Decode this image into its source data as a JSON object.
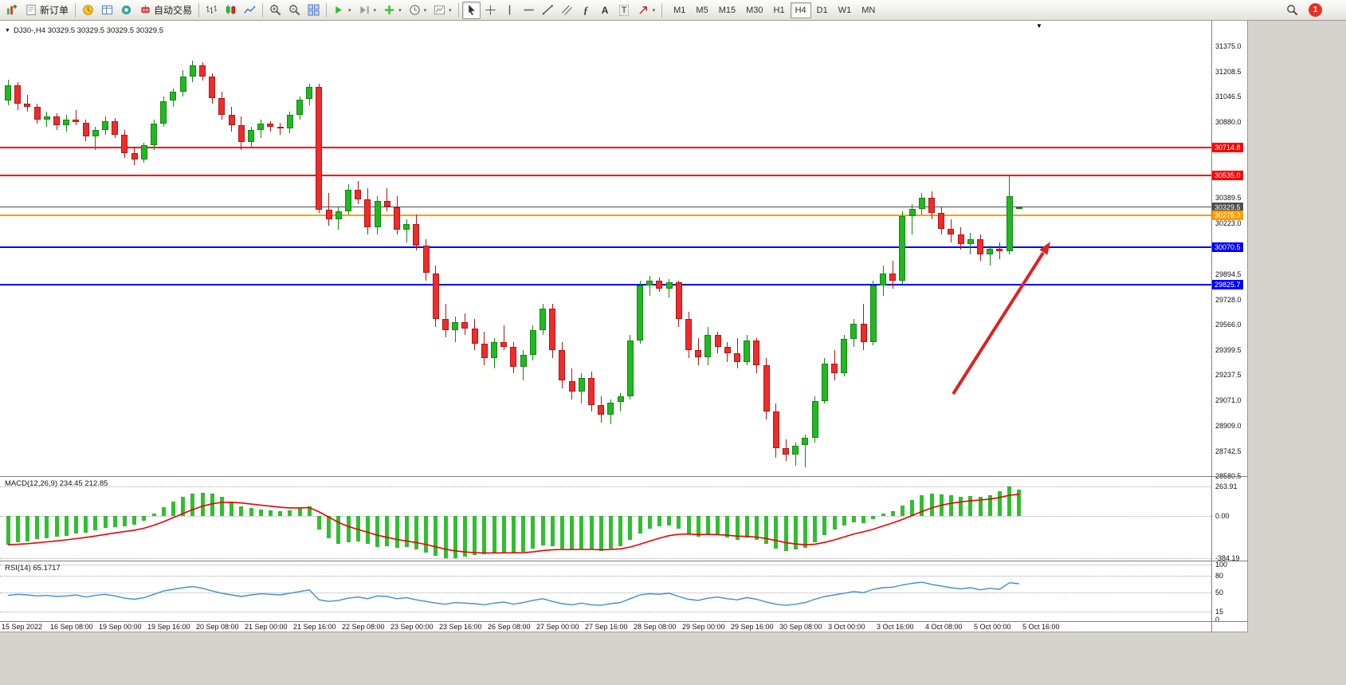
{
  "icons": {
    "dropdown": "▾",
    "menu_arrow": "▼",
    "shift_marker": "▼"
  },
  "toolbar": {
    "new_order": "新订单",
    "auto_trading": "自动交易",
    "glyphs": {
      "fibonacci": "ƒ",
      "text": "A",
      "label": "T"
    },
    "timeframes": [
      "M1",
      "M5",
      "M15",
      "M30",
      "H1",
      "H4",
      "D1",
      "W1",
      "MN"
    ],
    "active_timeframe": "H4",
    "notification_badge": "1"
  },
  "chart_title": "DJ30-,H4 30329.5 30329.5 30329.5 30329.5",
  "colors": {
    "up": "#22b822",
    "up_border": "#108810",
    "down": "#ee2c2c",
    "down_border": "#b81414",
    "macd_bar": "#2fbf2f",
    "macd_signal": "#f00000",
    "rsi_line": "#3e8ed0",
    "level_red": "#ff0000",
    "level_orange": "#ff9c00",
    "level_blue": "#0000ff",
    "bid_gray": "#4d4d4d",
    "arrow": "#dd2222"
  },
  "chart_data": [
    {
      "type": "candlestick",
      "symbol": "DJ30-",
      "timeframe": "H4",
      "ylim": [
        28580.5,
        31375.0
      ],
      "y_ticks": [
        "31375.0",
        "31208.5",
        "31046.5",
        "30880.0",
        "30389.5",
        "30223.0",
        "29894.5",
        "29728.0",
        "29566.0",
        "29399.5",
        "29237.5",
        "29071.0",
        "28909.0",
        "28742.5",
        "28580.5"
      ],
      "levels": [
        {
          "price": 30714.8,
          "label": "30714.8",
          "color": "#ff0000",
          "width": 2
        },
        {
          "price": 30535.0,
          "label": "30535.0",
          "color": "#ff0000",
          "width": 2
        },
        {
          "price": 30329.5,
          "label": "30329.5",
          "color": "#4d4d4d",
          "width": 1
        },
        {
          "price": 30275.3,
          "label": "30275.3",
          "color": "#ff9c00",
          "width": 2
        },
        {
          "price": 30070.5,
          "label": "30070.5",
          "color": "#0000ff",
          "width": 2
        },
        {
          "price": 29825.7,
          "label": "29825.7",
          "color": "#0000ff",
          "width": 2
        }
      ],
      "candles": [
        [
          31020,
          31160,
          30990,
          31120
        ],
        [
          31120,
          31140,
          30960,
          31000
        ],
        [
          31000,
          31060,
          30950,
          30980
        ],
        [
          30980,
          31000,
          30870,
          30900
        ],
        [
          30900,
          30950,
          30850,
          30920
        ],
        [
          30920,
          30940,
          30830,
          30860
        ],
        [
          30860,
          30930,
          30820,
          30900
        ],
        [
          30900,
          30960,
          30860,
          30880
        ],
        [
          30880,
          30900,
          30760,
          30790
        ],
        [
          30790,
          30850,
          30700,
          30830
        ],
        [
          30830,
          30920,
          30800,
          30890
        ],
        [
          30890,
          30910,
          30780,
          30800
        ],
        [
          30800,
          30830,
          30650,
          30680
        ],
        [
          30680,
          30720,
          30600,
          30640
        ],
        [
          30640,
          30750,
          30620,
          30730
        ],
        [
          30730,
          30900,
          30700,
          30870
        ],
        [
          30870,
          31050,
          30850,
          31020
        ],
        [
          31020,
          31100,
          30980,
          31080
        ],
        [
          31080,
          31220,
          31050,
          31180
        ],
        [
          31180,
          31280,
          31140,
          31250
        ],
        [
          31250,
          31270,
          31150,
          31180
        ],
        [
          31180,
          31200,
          31000,
          31040
        ],
        [
          31040,
          31080,
          30900,
          30930
        ],
        [
          30930,
          30980,
          30820,
          30860
        ],
        [
          30860,
          30920,
          30700,
          30750
        ],
        [
          30750,
          30850,
          30720,
          30830
        ],
        [
          30830,
          30900,
          30780,
          30870
        ],
        [
          30870,
          30890,
          30820,
          30850
        ],
        [
          30850,
          30880,
          30800,
          30840
        ],
        [
          30840,
          30950,
          30810,
          30930
        ],
        [
          30930,
          31050,
          30900,
          31030
        ],
        [
          31030,
          31130,
          30990,
          31110
        ],
        [
          31110,
          31130,
          30290,
          30310
        ],
        [
          30310,
          30420,
          30210,
          30250
        ],
        [
          30250,
          30330,
          30180,
          30300
        ],
        [
          30300,
          30480,
          30280,
          30440
        ],
        [
          30440,
          30500,
          30350,
          30380
        ],
        [
          30380,
          30450,
          30150,
          30200
        ],
        [
          30200,
          30400,
          30150,
          30370
        ],
        [
          30370,
          30450,
          30300,
          30330
        ],
        [
          30330,
          30400,
          30150,
          30180
        ],
        [
          30180,
          30250,
          30100,
          30220
        ],
        [
          30220,
          30280,
          30050,
          30080
        ],
        [
          30080,
          30120,
          29850,
          29900
        ],
        [
          29900,
          29950,
          29550,
          29600
        ],
        [
          29600,
          29700,
          29480,
          29530
        ],
        [
          29530,
          29620,
          29450,
          29580
        ],
        [
          29580,
          29640,
          29500,
          29540
        ],
        [
          29540,
          29600,
          29400,
          29440
        ],
        [
          29440,
          29520,
          29300,
          29350
        ],
        [
          29350,
          29480,
          29280,
          29450
        ],
        [
          29450,
          29560,
          29400,
          29420
        ],
        [
          29420,
          29450,
          29250,
          29290
        ],
        [
          29290,
          29400,
          29200,
          29370
        ],
        [
          29370,
          29560,
          29330,
          29530
        ],
        [
          29530,
          29700,
          29500,
          29670
        ],
        [
          29670,
          29700,
          29350,
          29400
        ],
        [
          29400,
          29450,
          29150,
          29200
        ],
        [
          29200,
          29280,
          29080,
          29130
        ],
        [
          29130,
          29250,
          29050,
          29220
        ],
        [
          29220,
          29260,
          29000,
          29040
        ],
        [
          29040,
          29100,
          28930,
          28980
        ],
        [
          28980,
          29080,
          28920,
          29060
        ],
        [
          29060,
          29120,
          29000,
          29100
        ],
        [
          29100,
          29500,
          29080,
          29460
        ],
        [
          29460,
          29850,
          29440,
          29820
        ],
        [
          29820,
          29880,
          29750,
          29850
        ],
        [
          29850,
          29870,
          29780,
          29800
        ],
        [
          29800,
          29860,
          29740,
          29840
        ],
        [
          29840,
          29850,
          29550,
          29600
        ],
        [
          29600,
          29650,
          29350,
          29400
        ],
        [
          29400,
          29480,
          29300,
          29350
        ],
        [
          29350,
          29550,
          29300,
          29500
        ],
        [
          29500,
          29520,
          29380,
          29420
        ],
        [
          29420,
          29450,
          29320,
          29380
        ],
        [
          29380,
          29480,
          29280,
          29320
        ],
        [
          29320,
          29500,
          29300,
          29460
        ],
        [
          29460,
          29480,
          29250,
          29300
        ],
        [
          29300,
          29350,
          28950,
          29000
        ],
        [
          29000,
          29050,
          28700,
          28760
        ],
        [
          28760,
          28820,
          28680,
          28720
        ],
        [
          28720,
          28800,
          28650,
          28780
        ],
        [
          28780,
          28850,
          28640,
          28830
        ],
        [
          28830,
          29100,
          28800,
          29070
        ],
        [
          29070,
          29350,
          29050,
          29310
        ],
        [
          29310,
          29400,
          29200,
          29250
        ],
        [
          29250,
          29500,
          29230,
          29470
        ],
        [
          29470,
          29600,
          29420,
          29570
        ],
        [
          29570,
          29700,
          29400,
          29450
        ],
        [
          29450,
          29850,
          29430,
          29820
        ],
        [
          29820,
          29950,
          29750,
          29900
        ],
        [
          29900,
          29980,
          29800,
          29850
        ],
        [
          29850,
          30300,
          29830,
          30270
        ],
        [
          30270,
          30350,
          30150,
          30320
        ],
        [
          30320,
          30420,
          30280,
          30390
        ],
        [
          30390,
          30430,
          30250,
          30290
        ],
        [
          30290,
          30330,
          30150,
          30190
        ],
        [
          30190,
          30250,
          30100,
          30150
        ],
        [
          30150,
          30200,
          30050,
          30090
        ],
        [
          30090,
          30160,
          30020,
          30120
        ],
        [
          30120,
          30150,
          29980,
          30020
        ],
        [
          30020,
          30080,
          29950,
          30060
        ],
        [
          30060,
          30100,
          29990,
          30040
        ],
        [
          30040,
          30540,
          30020,
          30400
        ],
        [
          30329.5,
          30329.5,
          30329.5,
          30329.5
        ]
      ],
      "x_labels": [
        "15 Sep 2022",
        "16 Sep 08:00",
        "19 Sep 00:00",
        "19 Sep 16:00",
        "20 Sep 08:00",
        "21 Sep 00:00",
        "21 Sep 16:00",
        "22 Sep 08:00",
        "23 Sep 00:00",
        "23 Sep 16:00",
        "26 Sep 08:00",
        "27 Sep 00:00",
        "27 Sep 16:00",
        "28 Sep 08:00",
        "29 Sep 00:00",
        "29 Sep 16:00",
        "30 Sep 08:00",
        "3 Oct 00:00",
        "3 Oct 16:00",
        "4 Oct 08:00",
        "5 Oct 00:00",
        "5 Oct 16:00"
      ]
    },
    {
      "type": "bar",
      "name": "MACD",
      "label": "MACD(12,26,9) 234.45 212.85",
      "ylim": [
        -384.19,
        263.91
      ],
      "y_ticks": [
        "263.91",
        "0.00",
        "-384.19"
      ],
      "values": [
        -260,
        -240,
        -230,
        -210,
        -200,
        -190,
        -180,
        -160,
        -150,
        -130,
        -110,
        -100,
        -90,
        -80,
        -40,
        20,
        80,
        130,
        170,
        200,
        210,
        200,
        170,
        130,
        90,
        70,
        60,
        50,
        40,
        50,
        70,
        90,
        -120,
        -200,
        -250,
        -240,
        -230,
        -250,
        -280,
        -270,
        -290,
        -280,
        -300,
        -330,
        -360,
        -384.19,
        -378,
        -365,
        -355,
        -345,
        -335,
        -330,
        -335,
        -325,
        -295,
        -265,
        -275,
        -295,
        -305,
        -295,
        -305,
        -315,
        -295,
        -275,
        -215,
        -155,
        -115,
        -95,
        -85,
        -115,
        -155,
        -185,
        -165,
        -175,
        -195,
        -215,
        -195,
        -215,
        -255,
        -295,
        -315,
        -305,
        -285,
        -235,
        -175,
        -125,
        -85,
        -55,
        -65,
        -25,
        25,
        45,
        95,
        145,
        185,
        205,
        195,
        185,
        175,
        180,
        170,
        185,
        225,
        263.91,
        234.45
      ]
    },
    {
      "type": "line",
      "name": "RSI",
      "label": "RSI(14) 65.1717",
      "ylim": [
        0,
        100
      ],
      "y_ticks": [
        "100",
        "80",
        "50",
        "15",
        "0"
      ],
      "values": [
        44,
        46,
        45,
        43,
        44,
        42,
        43,
        45,
        41,
        44,
        46,
        43,
        39,
        37,
        40,
        46,
        52,
        55,
        58,
        60,
        57,
        52,
        48,
        45,
        42,
        45,
        47,
        46,
        45,
        48,
        51,
        54,
        36,
        33,
        35,
        39,
        41,
        38,
        43,
        42,
        38,
        40,
        36,
        33,
        30,
        28,
        31,
        30,
        29,
        27,
        30,
        32,
        28,
        31,
        35,
        38,
        33,
        29,
        27,
        30,
        27,
        26,
        29,
        31,
        38,
        45,
        47,
        46,
        48,
        42,
        37,
        35,
        39,
        41,
        38,
        36,
        40,
        37,
        32,
        28,
        26,
        28,
        31,
        37,
        42,
        45,
        48,
        51,
        49,
        55,
        58,
        59,
        63,
        66,
        68,
        64,
        61,
        58,
        56,
        58,
        54,
        57,
        55,
        67,
        65.17
      ]
    }
  ]
}
